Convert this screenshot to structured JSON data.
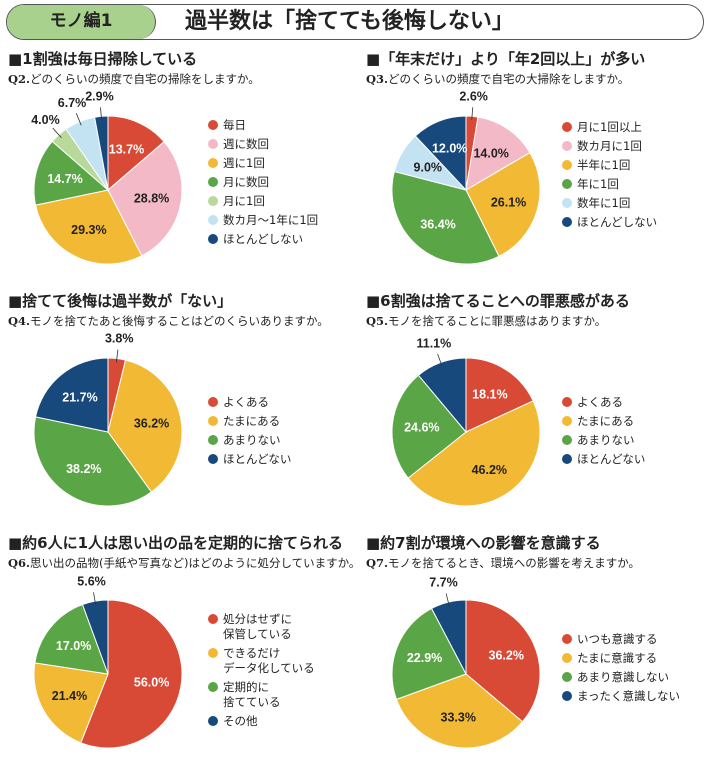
{
  "header": {
    "tag": "モノ編1",
    "title": "過半数は「捨てても後悔しない」"
  },
  "colors": {
    "red": "#d94a36",
    "pink": "#f3b9c7",
    "yellow": "#f2b935",
    "green": "#5aa545",
    "lightgreen": "#b9d99c",
    "lightblue": "#c3e2f2",
    "navy": "#17497d"
  },
  "chart_data": [
    {
      "type": "pie",
      "title": "■1割強は毎日掃除している",
      "question_no": "Q2.",
      "question": "どのくらいの頻度で自宅の掃除をしますか。",
      "categories": [
        "毎日",
        "週に数回",
        "週に1回",
        "月に数回",
        "月に1回",
        "数カ月～1年に1回",
        "ほとんどしない"
      ],
      "values": [
        13.7,
        28.8,
        29.3,
        14.7,
        4.0,
        6.7,
        2.9
      ],
      "labels": [
        "13.7%",
        "28.8%",
        "29.3%",
        "14.7%",
        "4.0%",
        "6.7%",
        "2.9%"
      ],
      "colors": [
        "#d94a36",
        "#f3b9c7",
        "#f2b935",
        "#5aa545",
        "#b9d99c",
        "#c3e2f2",
        "#17497d"
      ]
    },
    {
      "type": "pie",
      "title": "■「年末だけ」より「年2回以上」が多い",
      "question_no": "Q3.",
      "question": "どのくらいの頻度で自宅の大掃除をしますか。",
      "categories": [
        "月に1回以上",
        "数カ月に1回",
        "半年に1回",
        "年に1回",
        "数年に1回",
        "ほとんどしない"
      ],
      "values": [
        2.6,
        14.0,
        26.1,
        36.4,
        9.0,
        12.0
      ],
      "labels": [
        "2.6%",
        "14.0%",
        "26.1%",
        "36.4%",
        "9.0%",
        "12.0%"
      ],
      "colors": [
        "#d94a36",
        "#f3b9c7",
        "#f2b935",
        "#5aa545",
        "#c3e2f2",
        "#17497d"
      ]
    },
    {
      "type": "pie",
      "title": "■捨てて後悔は過半数が「ない」",
      "question_no": "Q4.",
      "question": "モノを捨てたあと後悔することはどのくらいありますか。",
      "categories": [
        "よくある",
        "たまにある",
        "あまりない",
        "ほとんどない"
      ],
      "values": [
        3.8,
        36.2,
        38.2,
        21.7
      ],
      "labels": [
        "3.8%",
        "36.2%",
        "38.2%",
        "21.7%"
      ],
      "colors": [
        "#d94a36",
        "#f2b935",
        "#5aa545",
        "#17497d"
      ]
    },
    {
      "type": "pie",
      "title": "■6割強は捨てることへの罪悪感がある",
      "question_no": "Q5.",
      "question": "モノを捨てることに罪悪感はありますか。",
      "categories": [
        "よくある",
        "たまにある",
        "あまりない",
        "ほとんどない"
      ],
      "values": [
        18.1,
        46.2,
        24.6,
        11.1
      ],
      "labels": [
        "18.1%",
        "46.2%",
        "24.6%",
        "11.1%"
      ],
      "colors": [
        "#d94a36",
        "#f2b935",
        "#5aa545",
        "#17497d"
      ]
    },
    {
      "type": "pie",
      "title": "■約6人に1人は思い出の品を定期的に捨てられる",
      "question_no": "Q6.",
      "question": "思い出の品物(手紙や写真など)はどのように処分していますか。",
      "categories": [
        "処分はせずに\n保管している",
        "できるだけ\nデータ化している",
        "定期的に\n捨てている",
        "その他"
      ],
      "values": [
        56.0,
        21.4,
        17.0,
        5.6
      ],
      "labels": [
        "56.0%",
        "21.4%",
        "17.0%",
        "5.6%"
      ],
      "colors": [
        "#d94a36",
        "#f2b935",
        "#5aa545",
        "#17497d"
      ]
    },
    {
      "type": "pie",
      "title": "■約7割が環境への影響を意識する",
      "question_no": "Q7.",
      "question": "モノを捨てるとき、環境への影響を考えますか。",
      "categories": [
        "いつも意識する",
        "たまに意識する",
        "あまり意識しない",
        "まったく意識しない"
      ],
      "values": [
        36.2,
        33.3,
        22.9,
        7.7
      ],
      "labels": [
        "36.2%",
        "33.3%",
        "22.9%",
        "7.7%"
      ],
      "colors": [
        "#d94a36",
        "#f2b935",
        "#5aa545",
        "#17497d"
      ]
    }
  ]
}
